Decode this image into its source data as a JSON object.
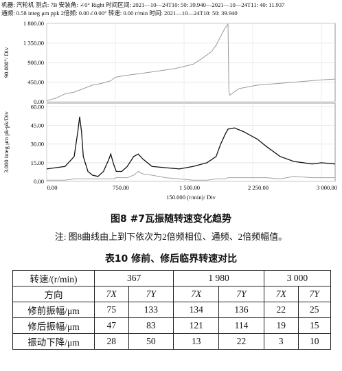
{
  "header_lines": [
    "机器: 汽轮机 测点: 7B 安装角: ∠0° Right 时间区间: 2021—10—24T10: 50: 39.940—2021—10—24T11: 40: 11.937",
    "通频: 0.58 integ μm ppk 2倍频: 0.00∠0.00° 转速: 0.00 r/min 时间: 2021—10—24T10: 50: 39.940"
  ],
  "chart_data": [
    {
      "type": "line",
      "ylabel": "90.000°/ Div",
      "xlim": [
        0,
        3150
      ],
      "ylim": [
        0,
        1800
      ],
      "grid": true,
      "yticks": [
        {
          "value": 0,
          "label": "0.00"
        },
        {
          "value": 450,
          "label": "450.00"
        },
        {
          "value": 900,
          "label": "900.00"
        },
        {
          "value": 1350,
          "label": "1 350.00"
        },
        {
          "value": 1800,
          "label": "1 800.00"
        }
      ],
      "xticks": [
        0,
        750,
        1500,
        2250,
        3000
      ],
      "x": [
        0,
        100,
        200,
        300,
        400,
        500,
        600,
        700,
        750,
        850,
        1000,
        1200,
        1400,
        1600,
        1700,
        1800,
        1850,
        1900,
        1950,
        1980,
        1990,
        2000,
        2100,
        2300,
        2600,
        3000,
        3150
      ],
      "series": [
        {
          "color": "#9a9a9a",
          "values": [
            20,
            80,
            180,
            220,
            300,
            380,
            420,
            480,
            560,
            600,
            640,
            700,
            760,
            860,
            1000,
            1150,
            1300,
            1500,
            1700,
            1780,
            250,
            150,
            300,
            380,
            430,
            500,
            520
          ]
        }
      ]
    },
    {
      "type": "line",
      "ylabel": "3.000 integ μm pk-pk/Div",
      "xlabel": "150.000 (r/min)/ Div",
      "xlim": [
        0,
        3150
      ],
      "ylim": [
        0,
        63
      ],
      "grid": true,
      "yticks": [
        {
          "value": 0,
          "label": "0.00"
        },
        {
          "value": 15,
          "label": "15.00"
        },
        {
          "value": 30,
          "label": "30.00"
        },
        {
          "value": 45,
          "label": "45.00"
        },
        {
          "value": 60,
          "label": "60.00"
        }
      ],
      "xticks": [
        {
          "value": 0,
          "label": "0.00"
        },
        {
          "value": 750,
          "label": "750.00"
        },
        {
          "value": 1500,
          "label": "1 500.00"
        },
        {
          "value": 2250,
          "label": "2 250.00"
        },
        {
          "value": 3000,
          "label": "3 000.00"
        }
      ],
      "x": [
        0,
        200,
        300,
        340,
        360,
        380,
        400,
        450,
        500,
        560,
        620,
        680,
        700,
        730,
        760,
        820,
        880,
        950,
        1000,
        1050,
        1150,
        1300,
        1450,
        1600,
        1750,
        1850,
        1900,
        1950,
        1980,
        2050,
        2150,
        2300,
        2400,
        2550,
        2700,
        2900,
        3000,
        3150
      ],
      "series": [
        {
          "color": "#111111",
          "values": [
            10,
            12,
            20,
            40,
            52,
            40,
            20,
            8,
            5,
            4,
            8,
            18,
            22,
            14,
            8,
            8,
            12,
            20,
            22,
            18,
            12,
            11,
            10,
            12,
            15,
            20,
            30,
            38,
            42,
            43,
            40,
            34,
            28,
            20,
            16,
            14,
            15,
            14
          ]
        },
        {
          "color": "#a0a0a0",
          "values": [
            1,
            1,
            2,
            2,
            2,
            2,
            2,
            2,
            2,
            2,
            2,
            2,
            2,
            2,
            3,
            3,
            3,
            5,
            8,
            6,
            5,
            3,
            2,
            1,
            1,
            2,
            2,
            2,
            3,
            3,
            3,
            3,
            3,
            2,
            4,
            3,
            3,
            3
          ]
        }
      ]
    }
  ],
  "caption": "图8 #7瓦振随转速变化趋势",
  "note": "注: 图8曲线由上到下依次为2倍频相位、通频、2倍频幅值。",
  "table": {
    "title": "表10 修前、修后临界转速对比",
    "header": [
      "转速/(r/min)",
      "367",
      "1 980",
      "3 000"
    ],
    "directions": [
      "方向",
      "7X",
      "7Y",
      "7X",
      "7Y",
      "7X",
      "7Y"
    ],
    "rows": [
      [
        "修前振幅/μm",
        "75",
        "133",
        "134",
        "136",
        "22",
        "25"
      ],
      [
        "修后振幅/μm",
        "47",
        "83",
        "121",
        "114",
        "19",
        "15"
      ],
      [
        "振动下降/μm",
        "28",
        "50",
        "13",
        "22",
        "3",
        "10"
      ]
    ]
  }
}
